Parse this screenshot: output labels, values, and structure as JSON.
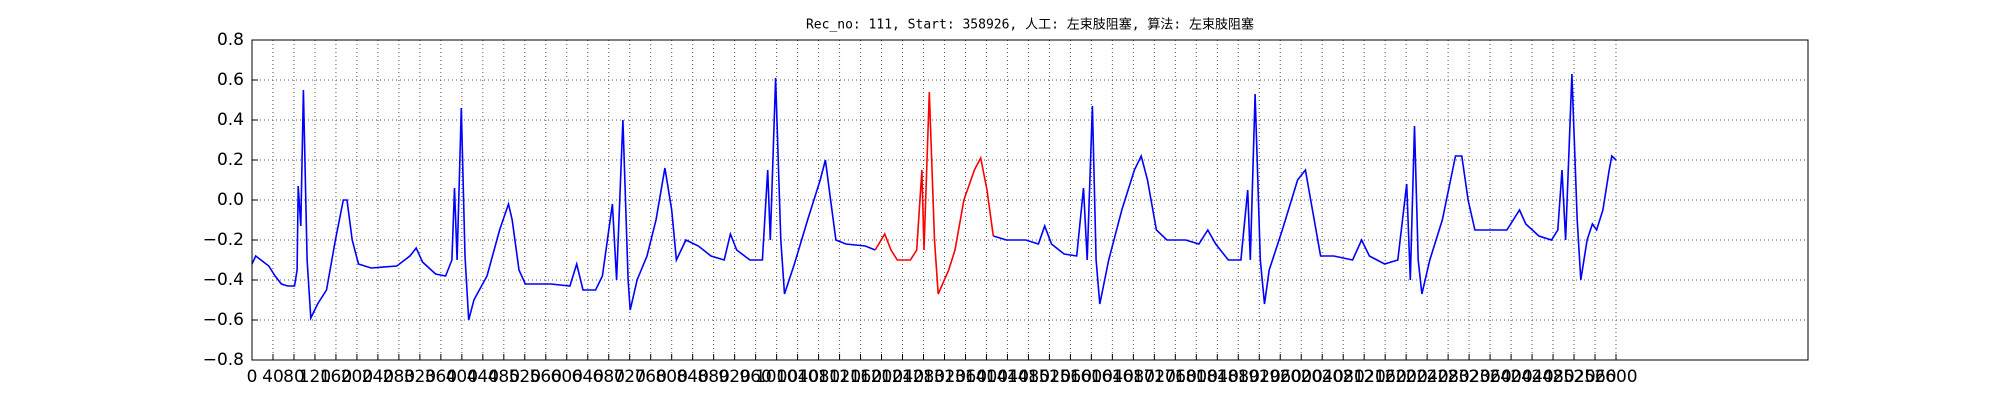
{
  "chart_data": {
    "type": "line",
    "title": "Rec_no: 111, Start: 358926, 人工: 左束肢阻塞, 算法: 左束肢阻塞",
    "xlim": [
      0,
      2966
    ],
    "ylim": [
      -0.8,
      0.8
    ],
    "xticks": [
      0,
      40,
      80,
      120,
      160,
      200,
      240,
      280,
      320,
      360,
      400,
      440,
      480,
      520,
      560,
      600,
      640,
      680,
      720,
      760,
      800,
      840,
      880,
      920,
      960,
      1000,
      1040,
      1080,
      1120,
      1160,
      1200,
      1240,
      1280,
      1320,
      1360,
      1400,
      1440,
      1480,
      1520,
      1560,
      1600,
      1640,
      1680,
      1720,
      1760,
      1800,
      1840,
      1880,
      1920,
      1960,
      2000,
      2040,
      2080,
      2120,
      2160,
      2200,
      2240,
      2280,
      2320,
      2360,
      2400,
      2440,
      2480,
      2520,
      2560,
      2600
    ],
    "yticks": [
      {
        "value": -0.8,
        "label": "−0.8"
      },
      {
        "value": -0.6,
        "label": "−0.6"
      },
      {
        "value": -0.4,
        "label": "−0.4"
      },
      {
        "value": -0.2,
        "label": "−0.2"
      },
      {
        "value": 0,
        "label": "0.0"
      },
      {
        "value": 0.2,
        "label": "0.2"
      },
      {
        "value": 0.4,
        "label": "0.4"
      },
      {
        "value": 0.6,
        "label": "0.6"
      },
      {
        "value": 0.8,
        "label": "0.8"
      }
    ],
    "grid": true,
    "series": [
      {
        "color": "#0000ff",
        "x": [
          0,
          7,
          32,
          44,
          56,
          68,
          81,
          86,
          88,
          93,
          98,
          105,
          112,
          125,
          142,
          159,
          174,
          181,
          191,
          203,
          227,
          276,
          301,
          313,
          325,
          350,
          369,
          381,
          386,
          391,
          399,
          406,
          413,
          423,
          448,
          472,
          489,
          496,
          509,
          521,
          570,
          606,
          619,
          631,
          655,
          668,
          687,
          695,
          707,
          717,
          721,
          734,
          753,
          770,
          787,
          800,
          809,
          827,
          851,
          875,
          900,
          912,
          924,
          949,
          973,
          983,
          988,
          998,
          1008,
          1015,
          1034,
          1059,
          1083,
          1093,
          1103,
          1113,
          1132,
          1169,
          1188,
          1300,
          1413,
          1438,
          1475,
          1499,
          1511,
          1524,
          1548,
          1572,
          1585,
          1592,
          1602,
          1609,
          1616,
          1633,
          1658,
          1682,
          1695,
          1707,
          1724,
          1744,
          1780,
          1805,
          1822,
          1837,
          1861,
          1885,
          1898,
          1903,
          1912,
          1922,
          1930,
          1939,
          1964,
          1993,
          2008,
          2018,
          2037,
          2062,
          2098,
          2115,
          2130,
          2159,
          2184,
          2201,
          2208,
          2216,
          2223,
          2230,
          2245,
          2269,
          2294,
          2306,
          2318,
          2331,
          2355,
          2392,
          2416,
          2428,
          2453,
          2477,
          2489,
          2497,
          2504,
          2516,
          2526,
          2533,
          2545,
          2555,
          2563,
          2575,
          2587,
          2592,
          2600
        ],
        "values": [
          -0.32,
          -0.28,
          -0.33,
          -0.38,
          -0.42,
          -0.43,
          -0.43,
          -0.35,
          0.07,
          -0.13,
          0.55,
          -0.3,
          -0.59,
          -0.52,
          -0.45,
          -0.2,
          0.0,
          0.0,
          -0.2,
          -0.32,
          -0.34,
          -0.33,
          -0.28,
          -0.24,
          -0.31,
          -0.37,
          -0.38,
          -0.3,
          0.06,
          -0.3,
          0.46,
          -0.28,
          -0.6,
          -0.5,
          -0.38,
          -0.15,
          -0.02,
          -0.1,
          -0.35,
          -0.42,
          -0.42,
          -0.43,
          -0.32,
          -0.45,
          -0.45,
          -0.38,
          -0.02,
          -0.4,
          0.4,
          -0.4,
          -0.55,
          -0.4,
          -0.28,
          -0.1,
          0.16,
          -0.05,
          -0.3,
          -0.2,
          -0.23,
          -0.28,
          -0.3,
          -0.17,
          -0.25,
          -0.3,
          -0.3,
          0.15,
          -0.2,
          0.61,
          -0.2,
          -0.47,
          -0.32,
          -0.1,
          0.1,
          0.2,
          0.0,
          -0.2,
          -0.22,
          -0.23,
          -0.25,
          null,
          -0.18,
          -0.2,
          -0.2,
          -0.22,
          -0.13,
          -0.22,
          -0.27,
          -0.28,
          0.06,
          -0.3,
          0.47,
          -0.3,
          -0.52,
          -0.3,
          -0.05,
          0.15,
          0.22,
          0.1,
          -0.15,
          -0.2,
          -0.2,
          -0.22,
          -0.15,
          -0.22,
          -0.3,
          -0.3,
          0.05,
          -0.3,
          0.53,
          -0.3,
          -0.52,
          -0.35,
          -0.15,
          0.1,
          0.15,
          0.0,
          -0.28,
          -0.28,
          -0.3,
          -0.2,
          -0.28,
          -0.32,
          -0.3,
          0.08,
          -0.4,
          0.37,
          -0.3,
          -0.47,
          -0.3,
          -0.1,
          0.22,
          0.22,
          0.0,
          -0.15,
          -0.15,
          -0.15,
          -0.05,
          -0.12,
          -0.18,
          -0.2,
          -0.15,
          0.15,
          -0.2,
          0.63,
          -0.1,
          -0.4,
          -0.2,
          -0.12,
          -0.15,
          -0.05,
          0.15,
          0.22,
          0.2
        ]
      },
      {
        "color": "#ff0000",
        "x": [
          1188,
          1206,
          1218,
          1230,
          1255,
          1267,
          1277,
          1281,
          1291,
          1301,
          1308,
          1328,
          1340,
          1357,
          1377,
          1389,
          1401,
          1413
        ],
        "values": [
          -0.25,
          -0.17,
          -0.25,
          -0.3,
          -0.3,
          -0.25,
          0.15,
          -0.25,
          0.54,
          -0.2,
          -0.47,
          -0.35,
          -0.25,
          0.0,
          0.15,
          0.21,
          0.05,
          -0.18
        ]
      }
    ]
  }
}
